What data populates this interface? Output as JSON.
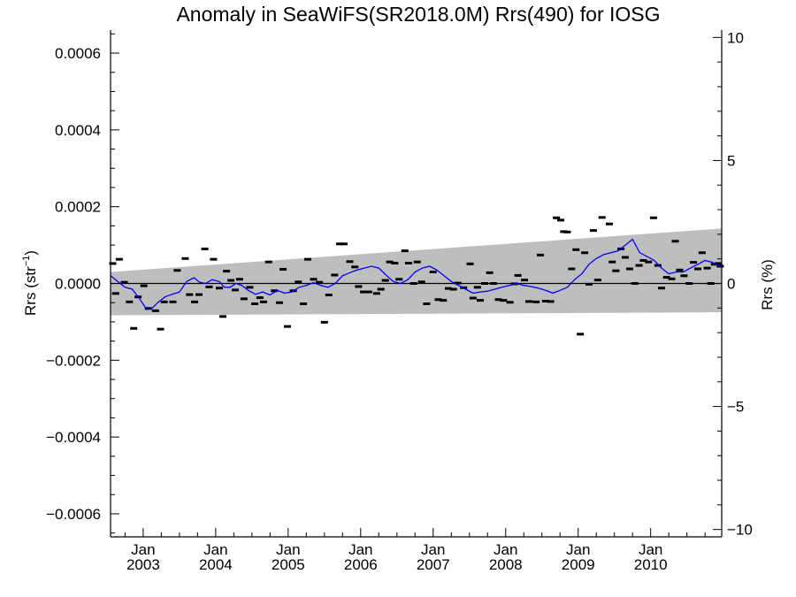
{
  "chart_data": {
    "type": "line",
    "title": "Anomaly in SeaWiFS(SR2018.0M) Rrs(490) for IOSG",
    "ylabel_left": "Rrs (str",
    "ylabel_left_sup": "−1",
    "ylabel_left_close": ")",
    "ylabel_right": "Rrs (%)",
    "xlim": [
      2002.55,
      2010.98
    ],
    "ylim": [
      -0.00066,
      0.00066
    ],
    "ylim_right": [
      -10.3,
      10.3
    ],
    "grid": false,
    "legend": "none",
    "colors": {
      "mean_line": "#0000ff",
      "points": "#000000",
      "band": "#bebebe",
      "zero_line": "#000000",
      "axis": "#000000"
    },
    "x_ticks": [
      {
        "value": 2003.0,
        "label_top": "Jan",
        "label_bottom": "2003"
      },
      {
        "value": 2004.0,
        "label_top": "Jan",
        "label_bottom": "2004"
      },
      {
        "value": 2005.0,
        "label_top": "Jan",
        "label_bottom": "2005"
      },
      {
        "value": 2006.0,
        "label_top": "Jan",
        "label_bottom": "2006"
      },
      {
        "value": 2007.0,
        "label_top": "Jan",
        "label_bottom": "2007"
      },
      {
        "value": 2008.0,
        "label_top": "Jan",
        "label_bottom": "2008"
      },
      {
        "value": 2009.0,
        "label_top": "Jan",
        "label_bottom": "2009"
      },
      {
        "value": 2010.0,
        "label_top": "Jan",
        "label_bottom": "2010"
      }
    ],
    "y_ticks_left": [
      {
        "value": 0.0006,
        "label": "0.0006"
      },
      {
        "value": 0.0004,
        "label": "0.0004"
      },
      {
        "value": 0.0002,
        "label": "0.0002"
      },
      {
        "value": 0.0,
        "label": "0.0000"
      },
      {
        "value": -0.0002,
        "label": "−0.0002"
      },
      {
        "value": -0.0004,
        "label": "−0.0004"
      },
      {
        "value": -0.0006,
        "label": "−0.0006"
      }
    ],
    "y_ticks_right": [
      {
        "value": 10,
        "label": "10"
      },
      {
        "value": 5,
        "label": "5"
      },
      {
        "value": 0,
        "label": "0"
      },
      {
        "value": -5,
        "label": "−5"
      },
      {
        "value": -10,
        "label": "−10"
      }
    ],
    "band": {
      "x": [
        2002.55,
        2010.98
      ],
      "upper": [
        3e-05,
        0.000143
      ],
      "lower": [
        -8.3e-05,
        -7.5e-05
      ]
    },
    "points": {
      "x": [
        2002.58,
        2002.62,
        2002.67,
        2002.74,
        2002.81,
        2002.87,
        2002.93,
        2003.01,
        2003.07,
        2003.17,
        2003.24,
        2003.29,
        2003.41,
        2003.47,
        2003.58,
        2003.64,
        2003.71,
        2003.77,
        2003.85,
        2003.91,
        2003.97,
        2004.05,
        2004.1,
        2004.15,
        2004.21,
        2004.27,
        2004.33,
        2004.39,
        2004.47,
        2004.54,
        2004.61,
        2004.66,
        2004.73,
        2004.81,
        2004.88,
        2004.93,
        2004.99,
        2005.07,
        2005.14,
        2005.21,
        2005.27,
        2005.35,
        2005.43,
        2005.5,
        2005.56,
        2005.64,
        2005.71,
        2005.77,
        2005.85,
        2005.92,
        2005.97,
        2006.04,
        2006.11,
        2006.22,
        2006.28,
        2006.34,
        2006.4,
        2006.47,
        2006.53,
        2006.61,
        2006.66,
        2006.73,
        2006.78,
        2006.84,
        2006.91,
        2007.0,
        2007.07,
        2007.14,
        2007.21,
        2007.28,
        2007.34,
        2007.42,
        2007.51,
        2007.55,
        2007.61,
        2007.65,
        2007.71,
        2007.78,
        2007.83,
        2007.9,
        2007.97,
        2008.06,
        2008.12,
        2008.17,
        2008.26,
        2008.32,
        2008.42,
        2008.48,
        2008.55,
        2008.62,
        2008.7,
        2008.76,
        2008.8,
        2008.85,
        2008.91,
        2008.97,
        2009.03,
        2009.09,
        2009.15,
        2009.21,
        2009.27,
        2009.33,
        2009.43,
        2009.47,
        2009.52,
        2009.59,
        2009.65,
        2009.71,
        2009.78,
        2009.84,
        2009.9,
        2009.97,
        2010.04,
        2010.1,
        2010.15,
        2010.22,
        2010.29,
        2010.34,
        2010.4,
        2010.46,
        2010.53,
        2010.59,
        2010.65,
        2010.71,
        2010.78,
        2010.83,
        2010.88,
        2010.93,
        2010.96
      ],
      "y": [
        5.2e-05,
        -2.6e-05,
        6.3e-05,
        3e-06,
        -4.8e-05,
        -0.000117,
        -3.5e-05,
        -6e-06,
        -6.5e-05,
        -7.1e-05,
        -0.000119,
        -4.8e-05,
        -4.8e-05,
        3.4e-05,
        6.5e-05,
        -2.9e-05,
        -4.8e-05,
        -2.9e-05,
        9e-05,
        -9e-06,
        6.3e-05,
        -1.2e-05,
        -8.6e-05,
        3.2e-05,
        8e-06,
        -1.7e-05,
        1.1e-05,
        -4e-05,
        -1e-05,
        -5.3e-05,
        -3.7e-05,
        -4.8e-05,
        5.6e-05,
        -1.9e-05,
        -5e-05,
        3.7e-05,
        -0.000112,
        -1.9e-05,
        4e-06,
        -5.3e-05,
        6.3e-05,
        1.1e-05,
        3e-06,
        -0.000101,
        -3e-05,
        2.2e-05,
        0.000103,
        0.000103,
        5.7e-05,
        4.3e-05,
        -8e-06,
        -2.2e-05,
        -2.2e-05,
        -2.6e-05,
        -1.5e-05,
        8e-06,
        5.6e-05,
        5.3e-05,
        1.1e-05,
        8.5e-05,
        5.3e-05,
        0.0,
        5.6e-05,
        4e-06,
        -5.3e-05,
        3e-05,
        -4.2e-05,
        -4.4e-05,
        -1.3e-05,
        -1.5e-05,
        1e-06,
        -1.1e-05,
        5.1e-05,
        -3.8e-05,
        -1e-05,
        -4.4e-05,
        0.0,
        2.8e-05,
        0.0,
        -4.2e-05,
        -4.4e-05,
        -4.9e-05,
        -1e-06,
        2.1e-05,
        9e-06,
        -4.7e-05,
        -4.8e-05,
        7.4e-05,
        -4.6e-05,
        -4.7e-05,
        0.000171,
        0.000165,
        0.000135,
        0.000134,
        3.8e-05,
        8.8e-05,
        -0.000132,
        8e-05,
        -2e-06,
        0.000138,
        9e-06,
        0.000172,
        0.000155,
        5.6e-05,
        3.3e-05,
        9e-05,
        6.8e-05,
        3.8e-05,
        0.0,
        4.7e-05,
        6e-05,
        5.6e-05,
        0.000171,
        4.7e-05,
        -1.2e-05,
        1.6e-05,
        1.2e-05,
        0.00011,
        3.5e-05,
        2e-05,
        0.0,
        5.5e-05,
        3.8e-05,
        8e-05,
        4e-05,
        0.0,
        5e-05,
        5.2e-05,
        4.5e-05
      ]
    },
    "mean_line": {
      "x": [
        2002.55,
        2002.65,
        2002.75,
        2002.85,
        2002.95,
        2003.05,
        2003.12,
        2003.2,
        2003.3,
        2003.4,
        2003.5,
        2003.6,
        2003.7,
        2003.78,
        2003.86,
        2003.95,
        2004.05,
        2004.12,
        2004.2,
        2004.28,
        2004.36,
        2004.45,
        2004.55,
        2004.65,
        2004.75,
        2004.85,
        2004.95,
        2005.05,
        2005.15,
        2005.25,
        2005.35,
        2005.45,
        2005.55,
        2005.65,
        2005.75,
        2005.85,
        2005.95,
        2006.05,
        2006.15,
        2006.25,
        2006.35,
        2006.45,
        2006.55,
        2006.65,
        2006.75,
        2006.85,
        2006.95,
        2007.05,
        2007.15,
        2007.25,
        2007.35,
        2007.45,
        2007.55,
        2007.65,
        2007.75,
        2007.85,
        2007.95,
        2008.05,
        2008.15,
        2008.25,
        2008.35,
        2008.45,
        2008.55,
        2008.65,
        2008.75,
        2008.85,
        2008.95,
        2009.05,
        2009.15,
        2009.25,
        2009.35,
        2009.45,
        2009.55,
        2009.65,
        2009.75,
        2009.85,
        2009.95,
        2010.05,
        2010.15,
        2010.25,
        2010.35,
        2010.45,
        2010.55,
        2010.65,
        2010.75,
        2010.85,
        2010.95,
        2010.98
      ],
      "y": [
        2e-05,
        5e-06,
        -1e-05,
        -1.5e-05,
        -4e-05,
        -6.8e-05,
        -6.5e-05,
        -5e-05,
        -3.5e-05,
        -2.8e-05,
        -2.2e-05,
        5e-06,
        1.5e-05,
        3e-06,
        0.0,
        1e-05,
        5e-06,
        -1e-05,
        -1e-05,
        0.0,
        -5e-06,
        -1.8e-05,
        -2.8e-05,
        -2.2e-05,
        -3e-05,
        -1.8e-05,
        -2.5e-05,
        -2.2e-05,
        -1e-05,
        -5e-06,
        2e-06,
        -5e-06,
        -1e-05,
        0.0,
        2e-05,
        2.8e-05,
        3.5e-05,
        4e-05,
        4.5e-05,
        4e-05,
        2.2e-05,
        5e-06,
        0.0,
        1e-05,
        3e-05,
        4e-05,
        4.5e-05,
        3.5e-05,
        2e-05,
        5e-06,
        -5e-06,
        -1.5e-05,
        -2.5e-05,
        -2.2e-05,
        -2e-05,
        -1.5e-05,
        -1e-05,
        -5e-06,
        0.0,
        -5e-06,
        -8e-06,
        -1.2e-05,
        -1.8e-05,
        -2.5e-05,
        -1.8e-05,
        -1e-05,
        1e-05,
        2.5e-05,
        5e-05,
        6.5e-05,
        7.5e-05,
        8e-05,
        8.5e-05,
        0.0001,
        0.000115,
        8e-05,
        7e-05,
        6e-05,
        4e-05,
        2.5e-05,
        3e-05,
        3e-05,
        4e-05,
        5e-05,
        6e-05,
        5.5e-05,
        4.5e-05,
        4.5e-05
      ]
    }
  }
}
